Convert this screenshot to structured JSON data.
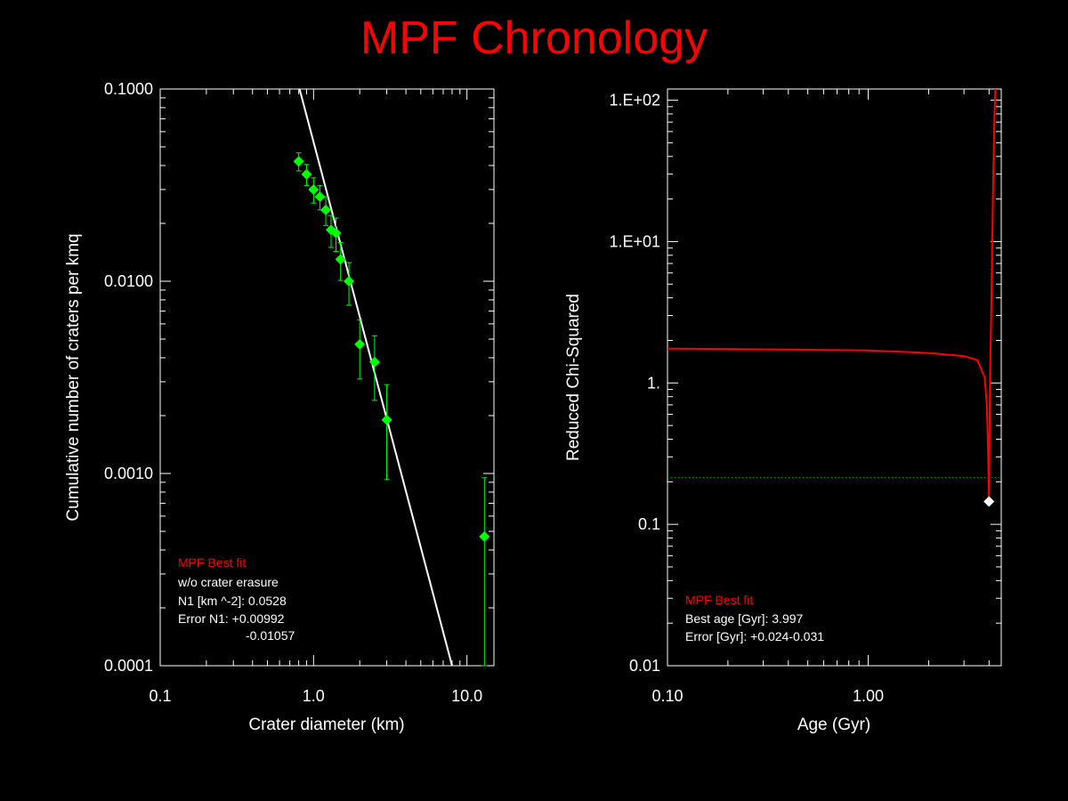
{
  "title": "MPF Chronology",
  "colors": {
    "background": "#000000",
    "title": "#ff0000",
    "axis": "#ffffff",
    "data": "#00ff00",
    "fit": "#ffffff",
    "chi_curve": "#ff0000",
    "threshold": "#00aa00",
    "best_marker": "#ffffff",
    "legend_title": "#ff0000"
  },
  "chart_data": [
    {
      "type": "scatter",
      "xlabel": "Crater diameter (km)",
      "ylabel": "Cumulative number of craters per kmq",
      "x_log": true,
      "y_log": true,
      "xlim": [
        0.1,
        15
      ],
      "ylim": [
        0.0001,
        0.1
      ],
      "x_tick_labels": [
        {
          "value": 0.1,
          "label": "0.1"
        },
        {
          "value": 1,
          "label": "1.0"
        },
        {
          "value": 10,
          "label": "10.0"
        }
      ],
      "y_tick_labels": [
        {
          "value": 0.1,
          "label": "0.1000"
        },
        {
          "value": 0.01,
          "label": "0.0100"
        },
        {
          "value": 0.001,
          "label": "0.0010"
        },
        {
          "value": 0.0001,
          "label": "0.0001"
        }
      ],
      "points": [
        {
          "x": 0.8,
          "y": 0.042,
          "err_low": 0.0375,
          "err_high": 0.0465
        },
        {
          "x": 0.9,
          "y": 0.036,
          "err_low": 0.0315,
          "err_high": 0.0405
        },
        {
          "x": 1.0,
          "y": 0.03,
          "err_low": 0.0255,
          "err_high": 0.0345
        },
        {
          "x": 1.1,
          "y": 0.0275,
          "err_low": 0.0235,
          "err_high": 0.0315
        },
        {
          "x": 1.2,
          "y": 0.0235,
          "err_low": 0.0195,
          "err_high": 0.0275
        },
        {
          "x": 1.3,
          "y": 0.0185,
          "err_low": 0.015,
          "err_high": 0.022
        },
        {
          "x": 1.4,
          "y": 0.0178,
          "err_low": 0.0143,
          "err_high": 0.0213
        },
        {
          "x": 1.5,
          "y": 0.013,
          "err_low": 0.0101,
          "err_high": 0.0159
        },
        {
          "x": 1.7,
          "y": 0.01,
          "err_low": 0.0075,
          "err_high": 0.0125
        },
        {
          "x": 2.0,
          "y": 0.0047,
          "err_low": 0.0031,
          "err_high": 0.0063
        },
        {
          "x": 2.5,
          "y": 0.0038,
          "err_low": 0.0024,
          "err_high": 0.0052
        },
        {
          "x": 3.0,
          "y": 0.0019,
          "err_low": 0.00093,
          "err_high": 0.0029
        },
        {
          "x": 13.0,
          "y": 0.00047,
          "err_low": 0.0001,
          "err_high": 0.00095
        }
      ],
      "fit_line": {
        "x": [
          0.81,
          8.0
        ],
        "y": [
          0.12,
          0.0001
        ]
      },
      "legend": {
        "title": "MPF Best fit",
        "lines": [
          "w/o crater erasure",
          "N1 [km ^-2]: 0.0528",
          "Error N1: +0.00992",
          "-0.01057"
        ]
      }
    },
    {
      "type": "line",
      "xlabel": "Age (Gyr)",
      "ylabel": "Reduced Chi-Squared",
      "x_log": true,
      "y_log": true,
      "xlim": [
        0.1,
        4.6
      ],
      "ylim": [
        0.01,
        120
      ],
      "x_tick_labels": [
        {
          "value": 0.1,
          "label": "0.10"
        },
        {
          "value": 1,
          "label": "1.00"
        }
      ],
      "y_tick_labels": [
        {
          "value": 100,
          "label": "1.E+02"
        },
        {
          "value": 10,
          "label": "1.E+01"
        },
        {
          "value": 1,
          "label": "1."
        },
        {
          "value": 0.1,
          "label": "0.1"
        },
        {
          "value": 0.01,
          "label": "0.01"
        }
      ],
      "series": [
        {
          "x": [
            0.1,
            0.3,
            1.0,
            2.0,
            3.0,
            3.5,
            3.8,
            3.9,
            3.95,
            3.99,
            3.997,
            4.01,
            4.05,
            4.1,
            4.15,
            4.2,
            4.25,
            4.3
          ],
          "y": [
            1.75,
            1.73,
            1.7,
            1.63,
            1.55,
            1.45,
            1.1,
            0.7,
            0.35,
            0.17,
            0.145,
            0.3,
            1.2,
            3.0,
            10.0,
            30.0,
            70.0,
            120.0
          ]
        }
      ],
      "threshold_y": 0.215,
      "best_point": {
        "x": 3.997,
        "y": 0.145
      },
      "legend": {
        "title": "MPF Best fit",
        "lines": [
          "Best age [Gyr]: 3.997",
          "Error [Gyr]: +0.024-0.031"
        ]
      }
    }
  ]
}
